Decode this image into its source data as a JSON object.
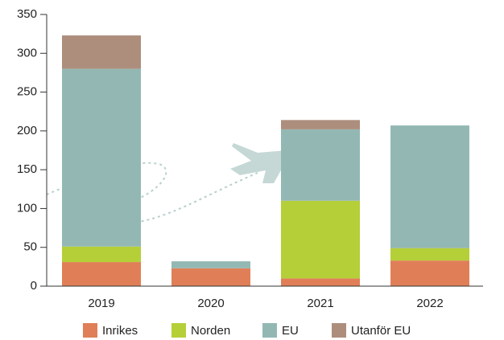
{
  "chart_data": {
    "type": "stacked_bar",
    "categories": [
      "2019",
      "2020",
      "2021",
      "2022"
    ],
    "series": [
      {
        "name": "Inrikes",
        "color": "#e07f57",
        "values": [
          31,
          23,
          10,
          33
        ]
      },
      {
        "name": "Norden",
        "color": "#b5cf38",
        "values": [
          20,
          0,
          100,
          16
        ]
      },
      {
        "name": "EU",
        "color": "#93b8b4",
        "values": [
          229,
          9,
          92,
          158
        ]
      },
      {
        "name": "Utanför EU",
        "color": "#ad8e7d",
        "values": [
          43,
          0,
          12,
          0
        ]
      }
    ],
    "ylim": [
      0,
      350
    ],
    "yticks": [
      0,
      50,
      100,
      150,
      200,
      250,
      300,
      350
    ],
    "legend": "bottom"
  }
}
